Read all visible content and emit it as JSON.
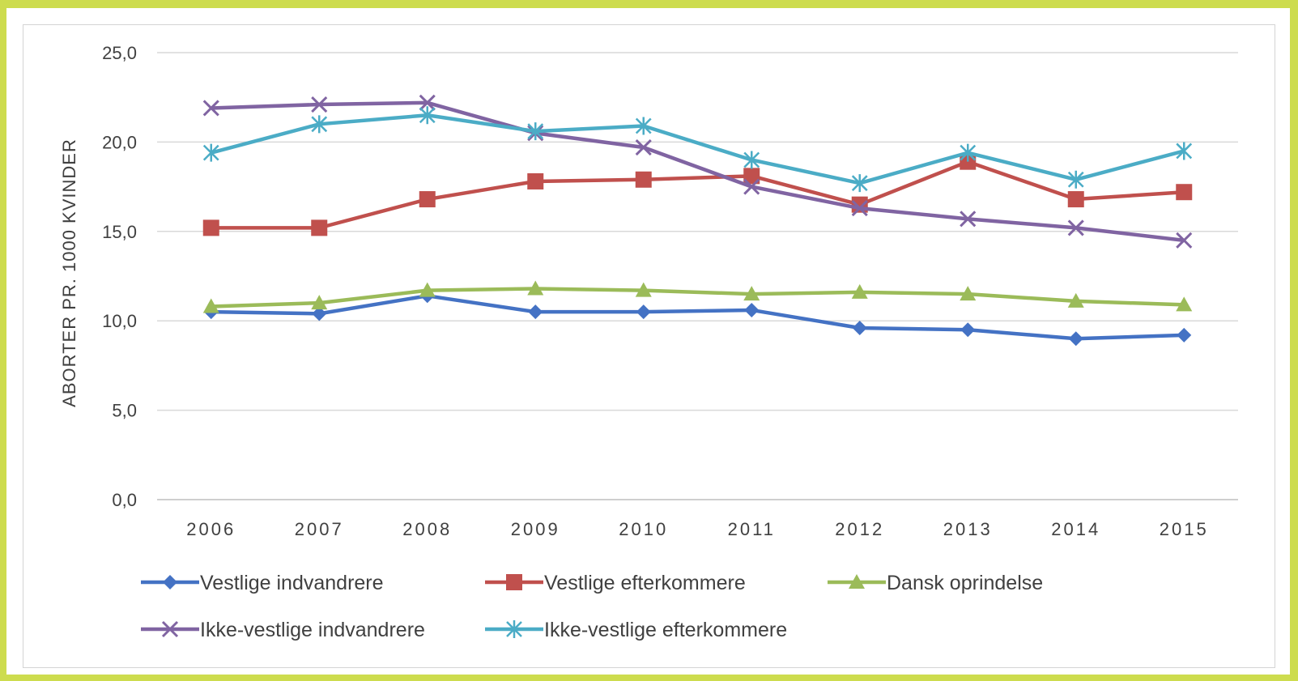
{
  "chart_data": {
    "type": "line",
    "title": "",
    "xlabel": "",
    "ylabel": "ABORTER PR. 1000 KVINDER",
    "categories": [
      "2006",
      "2007",
      "2008",
      "2009",
      "2010",
      "2011",
      "2012",
      "2013",
      "2014",
      "2015"
    ],
    "ylim": [
      0,
      25
    ],
    "yticks": [
      "0,0",
      "5,0",
      "10,0",
      "15,0",
      "20,0",
      "25,0"
    ],
    "grid": true,
    "legend_position": "bottom",
    "series": [
      {
        "name": "Vestlige indvandrere",
        "color": "#4472c4",
        "marker": "diamond",
        "values": [
          10.5,
          10.4,
          11.4,
          10.5,
          10.5,
          10.6,
          9.6,
          9.5,
          9.0,
          9.2
        ]
      },
      {
        "name": "Vestlige efterkommere",
        "color": "#c0504d",
        "marker": "square",
        "values": [
          15.2,
          15.2,
          16.8,
          17.8,
          17.9,
          18.1,
          16.5,
          18.9,
          16.8,
          17.2
        ]
      },
      {
        "name": "Dansk oprindelse",
        "color": "#9bbb59",
        "marker": "triangle",
        "values": [
          10.8,
          11.0,
          11.7,
          11.8,
          11.7,
          11.5,
          11.6,
          11.5,
          11.1,
          10.9
        ]
      },
      {
        "name": "Ikke-vestlige indvandrere",
        "color": "#8064a2",
        "marker": "x",
        "values": [
          21.9,
          22.1,
          22.2,
          20.5,
          19.7,
          17.5,
          16.3,
          15.7,
          15.2,
          14.5
        ]
      },
      {
        "name": "Ikke-vestlige efterkommere",
        "color": "#4bacc6",
        "marker": "star",
        "values": [
          19.4,
          21.0,
          21.5,
          20.6,
          20.9,
          19.0,
          17.7,
          19.4,
          17.9,
          19.5
        ]
      }
    ]
  }
}
